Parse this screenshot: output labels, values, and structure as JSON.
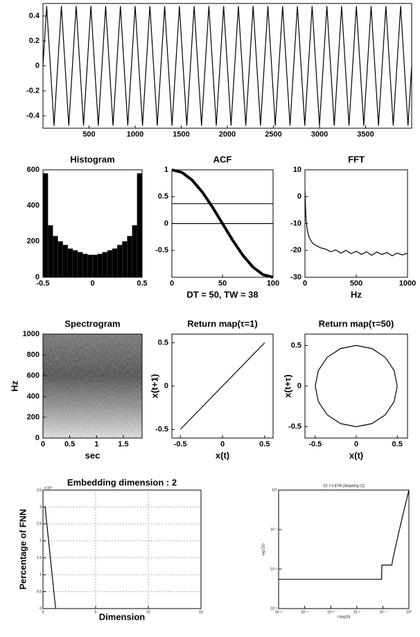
{
  "chart_data": [
    {
      "type": "line",
      "xlim": [
        0,
        4000
      ],
      "ylim": [
        -0.5,
        0.5
      ],
      "xticks": [
        500,
        1000,
        1500,
        2000,
        2500,
        3000,
        3500
      ],
      "yticks": [
        -0.4,
        -0.2,
        0,
        0.2,
        0.4
      ],
      "x": [
        0,
        40,
        80,
        120,
        160,
        200,
        240,
        280,
        320,
        360,
        400,
        440,
        480,
        520,
        560,
        600,
        640,
        680,
        720,
        760,
        800,
        840,
        880,
        920,
        960,
        1000,
        1040,
        1080,
        1120,
        1160,
        1200,
        1240,
        1280,
        1320,
        1360,
        1400,
        1440,
        1480,
        1520,
        1560,
        1600,
        1640,
        1680,
        1720,
        1760,
        1800,
        1840,
        1880,
        1920,
        1960,
        2000,
        2040,
        2080,
        2120,
        2160,
        2200,
        2240,
        2280,
        2320,
        2360,
        2400,
        2440,
        2480,
        2520,
        2560,
        2600,
        2640,
        2680,
        2720,
        2760,
        2800,
        2840,
        2880,
        2920,
        2960,
        3000,
        3040,
        3080,
        3120,
        3160,
        3200,
        3240,
        3280,
        3320,
        3360,
        3400,
        3440,
        3480,
        3520,
        3560,
        3600,
        3640,
        3680,
        3720,
        3760,
        3800,
        3840,
        3880,
        3920,
        3960,
        4000
      ],
      "series": [
        {
          "color": "#000000",
          "values": [
            0,
            0.48,
            0,
            -0.48,
            0,
            0.48,
            0,
            -0.48,
            0,
            0.48,
            0,
            -0.48,
            0,
            0.48,
            0,
            -0.48,
            0,
            0.48,
            0,
            -0.48,
            0,
            0.48,
            0,
            -0.48,
            0,
            0.48,
            0,
            -0.48,
            0,
            0.48,
            0,
            -0.48,
            0,
            0.48,
            0,
            -0.48,
            0,
            0.48,
            0,
            -0.48,
            0,
            0.48,
            0,
            -0.48,
            0,
            0.48,
            0,
            -0.48,
            0,
            0.48,
            0,
            -0.48,
            0,
            0.48,
            0,
            -0.48,
            0,
            0.48,
            0,
            -0.48,
            0,
            0.48,
            0,
            -0.48,
            0,
            0.48,
            0,
            -0.48,
            0,
            0.48,
            0,
            -0.48,
            0,
            0.48,
            0,
            -0.48,
            0,
            0.48,
            0,
            -0.48,
            0,
            0.48,
            0,
            -0.48,
            0,
            0.48,
            0,
            -0.48,
            0,
            0.48,
            0,
            -0.48,
            0,
            0.48,
            0,
            -0.48,
            0,
            0.48,
            0,
            -0.48,
            0
          ]
        }
      ]
    },
    {
      "type": "histogram",
      "title": "Histogram",
      "color": "#000000",
      "bins": [
        -0.5,
        -0.45,
        -0.4,
        -0.35,
        -0.3,
        -0.25,
        -0.2,
        -0.15,
        -0.1,
        -0.05,
        0,
        0.05,
        0.1,
        0.15,
        0.2,
        0.25,
        0.3,
        0.35,
        0.4,
        0.45,
        0.5
      ],
      "values": [
        580,
        290,
        230,
        200,
        180,
        160,
        150,
        140,
        130,
        125,
        125,
        130,
        140,
        150,
        160,
        180,
        200,
        230,
        290,
        580
      ],
      "xlim": [
        -0.5,
        0.5
      ],
      "ylim": [
        0,
        600
      ],
      "xticks": [
        -0.5,
        0,
        0.5
      ],
      "yticks": [
        0,
        200,
        400,
        600
      ]
    },
    {
      "type": "line",
      "title": "ACF",
      "xlabel": "DT = 50,  TW = 38",
      "xlim": [
        0,
        100
      ],
      "ylim": [
        -1,
        1
      ],
      "xticks": [
        0,
        50,
        100
      ],
      "yticks": [
        -0.5,
        0,
        0.5,
        1
      ],
      "x": [
        0,
        10,
        20,
        30,
        40,
        50,
        60,
        70,
        80,
        90,
        100
      ],
      "series": [
        {
          "color": "#000000",
          "values": [
            1,
            0.951,
            0.809,
            0.588,
            0.309,
            0,
            -0.309,
            -0.588,
            -0.809,
            -0.951,
            -1
          ]
        }
      ],
      "reference_lines": [
        0.37,
        0
      ]
    },
    {
      "type": "line",
      "title": "FFT",
      "xlabel": "Hz",
      "xlim": [
        0,
        1000
      ],
      "ylim": [
        -30,
        10
      ],
      "xticks": [
        0,
        500,
        1000
      ],
      "yticks": [
        -30,
        -20,
        -10,
        0,
        10
      ],
      "x": [
        0,
        10,
        20,
        40,
        60,
        80,
        100,
        150,
        200,
        250,
        300,
        350,
        400,
        450,
        500,
        550,
        600,
        650,
        700,
        750,
        800,
        850,
        900,
        950,
        1000
      ],
      "series": [
        {
          "color": "#000000",
          "values": [
            2,
            -8,
            -12,
            -15,
            -16.5,
            -17.5,
            -18,
            -19,
            -19.5,
            -20.5,
            -19.8,
            -21,
            -20,
            -21.2,
            -20.3,
            -21.5,
            -20.5,
            -21.8,
            -20.6,
            -21.5,
            -20.8,
            -22,
            -21,
            -21.7,
            -21
          ]
        }
      ]
    },
    {
      "type": "spectrogram",
      "title": "Spectrogram",
      "xlabel": "sec",
      "ylabel": "Hz",
      "xlim": [
        0,
        1.85
      ],
      "ylim": [
        0,
        1000
      ],
      "xticks": [
        0,
        0.5,
        1,
        1.5
      ],
      "yticks": [
        0,
        200,
        400,
        600,
        800,
        1000
      ]
    },
    {
      "type": "line",
      "title": "Return map(τ=1)",
      "xlabel": "x(t)",
      "ylabel": "x(t+1)",
      "xlim": [
        -0.6,
        0.6
      ],
      "ylim": [
        -0.6,
        0.6
      ],
      "xticks": [
        -0.5,
        0,
        0.5
      ],
      "yticks": [
        -0.5,
        0,
        0.5
      ],
      "x": [
        -0.5,
        0.5
      ],
      "series": [
        {
          "color": "#000000",
          "values": [
            -0.5,
            0.5
          ]
        }
      ]
    },
    {
      "type": "line",
      "title": "Return map(τ=50)",
      "xlabel": "x(t)",
      "ylabel": "x(t+τ)",
      "xlim": [
        -0.625,
        0.625
      ],
      "ylim": [
        -0.64,
        0.64
      ],
      "xticks": [
        -0.5,
        0,
        0.5
      ],
      "yticks": [
        -0.5,
        0,
        0.5
      ],
      "x": [
        0.5,
        0.462,
        0.354,
        0.191,
        0,
        -0.191,
        -0.354,
        -0.462,
        -0.5,
        -0.462,
        -0.354,
        -0.191,
        0,
        0.191,
        0.354,
        0.462,
        0.5
      ],
      "series": [
        {
          "color": "#000000",
          "values": [
            0,
            0.191,
            0.354,
            0.462,
            0.5,
            0.462,
            0.354,
            0.191,
            0,
            -0.191,
            -0.354,
            -0.462,
            -0.5,
            -0.462,
            -0.354,
            -0.191,
            0
          ]
        }
      ]
    },
    {
      "type": "line",
      "title": "Embedding dimension : 2",
      "xlabel": "Dimension",
      "ylabel": "Percentage of FNN",
      "y_multiplier": "x 10⁴",
      "grid": true,
      "xlim": [
        0,
        15
      ],
      "ylim": [
        0,
        3.5
      ],
      "xticks": [
        0,
        5,
        10,
        15
      ],
      "yticks": [
        0,
        0.5,
        1,
        1.5,
        2,
        2.5,
        3,
        3.5
      ],
      "x": [
        0.2,
        1.2
      ],
      "series": [
        {
          "color": "#000000",
          "values": [
            3,
            0
          ]
        }
      ]
    },
    {
      "type": "line",
      "title": "D2 = 0.8795 [Slope(log C)]",
      "xlabel": "r (log10)",
      "ylabel": "log C(r)",
      "xlog": true,
      "ylog": true,
      "xlim": [
        1e-05,
        1
      ],
      "ylim": [
        0.001,
        1
      ],
      "xticks": [
        {
          "value": 1e-05,
          "label": "10⁻⁵"
        },
        {
          "value": 0.0001,
          "label": "10⁻⁴"
        },
        {
          "value": 0.001,
          "label": "10⁻³"
        },
        {
          "value": 0.01,
          "label": "10⁻²"
        },
        {
          "value": 0.1,
          "label": "10⁻¹"
        },
        {
          "value": 1,
          "label": "10⁰"
        }
      ],
      "yticks": [
        {
          "value": 0.001,
          "label": "10⁻³"
        },
        {
          "value": 0.01,
          "label": "10⁻²"
        },
        {
          "value": 0.1,
          "label": "10⁻¹"
        },
        {
          "value": 1,
          "label": "10⁰"
        }
      ],
      "x": [
        1e-05,
        0.089,
        0.092,
        0.22,
        0.25,
        0.4,
        0.6,
        1
      ],
      "series": [
        {
          "color": "#000000",
          "values": [
            0.0055,
            0.0055,
            0.0126,
            0.0126,
            0.02,
            0.08,
            0.25,
            1
          ]
        }
      ]
    }
  ]
}
